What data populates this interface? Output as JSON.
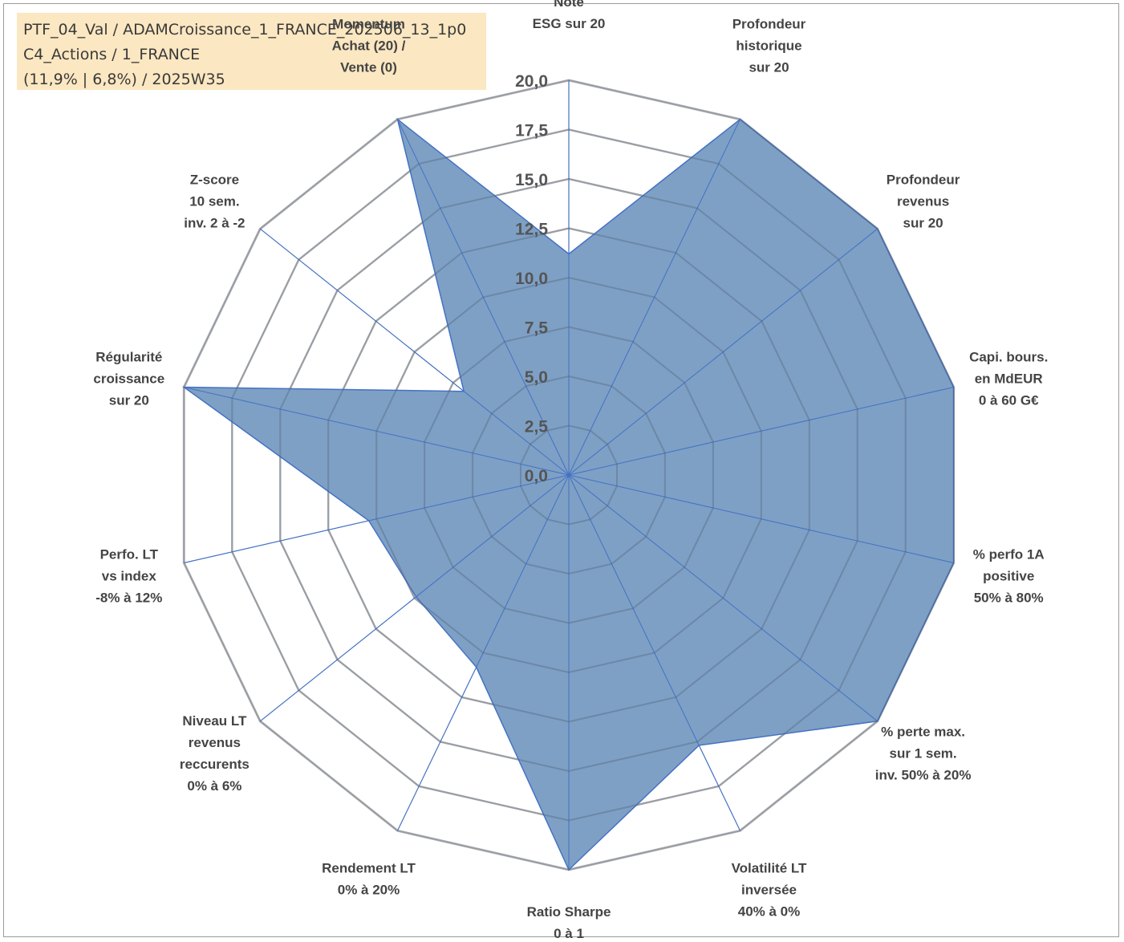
{
  "info": {
    "line1": "PTF_04_Val / ADAMCroissance_1_FRANCE_202506_13_1p0",
    "line2": "C4_Actions / 1_FRANCE",
    "line3": "(11,9% | 6,8%) / 2025W35"
  },
  "colors": {
    "fill": "#7a9dc3",
    "stroke": "#4472c4",
    "grid": "#bfbfbf",
    "spoke": "#4472c4",
    "highlight_label": "#b0a58d"
  },
  "chart_data": {
    "type": "radar",
    "rlim": [
      0,
      20
    ],
    "ticks": [
      "0,0",
      "2,5",
      "5,0",
      "7,5",
      "10,0",
      "12,5",
      "15,0",
      "17,5",
      "20,0"
    ],
    "tick_values": [
      0,
      2.5,
      5,
      7.5,
      10,
      12.5,
      15,
      17.5,
      20
    ],
    "axes": [
      {
        "lines": [
          "Note",
          "ESG sur 20"
        ],
        "value": 11.2
      },
      {
        "lines": [
          "Profondeur",
          "historique",
          "sur 20"
        ],
        "value": 20
      },
      {
        "lines": [
          "Profondeur",
          "revenus",
          "sur 20"
        ],
        "value": 20
      },
      {
        "lines": [
          "Capi. bours.",
          "en MdEUR",
          "0 à 60 G€"
        ],
        "value": 20
      },
      {
        "lines": [
          "% perfo 1A",
          "positive",
          "50% à 80%"
        ],
        "value": 20
      },
      {
        "lines": [
          "% perte max.",
          "sur 1 sem.",
          "inv. 50% à 20%"
        ],
        "value": 20
      },
      {
        "lines": [
          "Volatilité LT",
          "inversée",
          "40% à 0%"
        ],
        "value": 15.2
      },
      {
        "lines": [
          "Ratio Sharpe",
          "0 à 1"
        ],
        "value": 20
      },
      {
        "lines": [
          "Rendement LT",
          "0% à 20%"
        ],
        "value": 10.8
      },
      {
        "lines": [
          "Niveau LT",
          "revenus",
          "reccurents",
          "0% à 6%"
        ],
        "value": 9.9
      },
      {
        "lines": [
          "Perfo. LT",
          "vs index",
          "-8% à 12%"
        ],
        "value": 10.4
      },
      {
        "lines": [
          "Régularité",
          "croissance",
          "sur 20"
        ],
        "value": 20
      },
      {
        "lines": [
          "Z-score",
          "10 sem.",
          "inv. 2 à -2"
        ],
        "value": 6.8
      },
      {
        "lines": [
          "Momentum",
          "Achat (20) /",
          "Vente (0)"
        ],
        "value": 20,
        "muted_first_line": true
      }
    ]
  }
}
